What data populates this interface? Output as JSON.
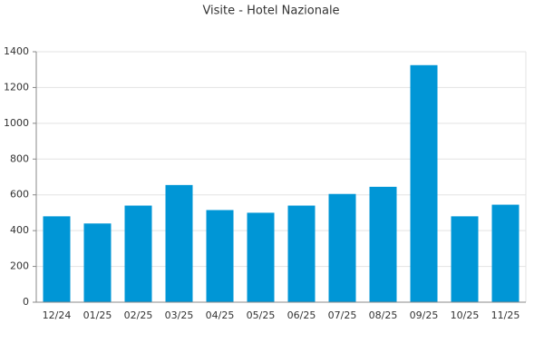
{
  "chart_data": {
    "type": "bar",
    "title": "Visite - Hotel Nazionale",
    "categories": [
      "12/24",
      "01/25",
      "02/25",
      "03/25",
      "04/25",
      "05/25",
      "06/25",
      "07/25",
      "08/25",
      "09/25",
      "10/25",
      "11/25"
    ],
    "values": [
      480,
      440,
      540,
      655,
      515,
      500,
      540,
      605,
      645,
      1325,
      480,
      545
    ],
    "color": "#0096d6",
    "ylim": [
      0,
      1400
    ],
    "yticks": [
      0,
      200,
      400,
      600,
      800,
      1000,
      1200,
      1400
    ],
    "grid": true
  }
}
